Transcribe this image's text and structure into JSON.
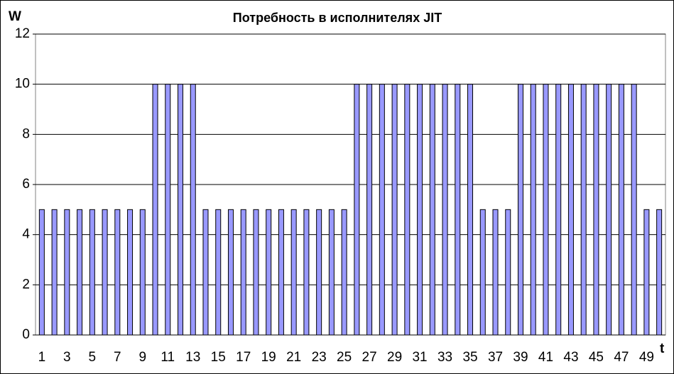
{
  "chart_data": {
    "type": "bar",
    "title": "Потребность в исполнителях JIT",
    "y_label": "W",
    "x_label": "t",
    "categories": [
      1,
      null,
      3,
      null,
      5,
      null,
      7,
      null,
      9,
      null,
      11,
      null,
      13,
      null,
      15,
      null,
      17,
      null,
      19,
      null,
      21,
      null,
      23,
      null,
      25,
      null,
      27,
      null,
      29,
      null,
      31,
      null,
      33,
      null,
      35,
      null,
      37,
      null,
      39,
      null,
      41,
      null,
      43,
      null,
      45,
      null,
      47,
      null,
      49,
      null
    ],
    "values": [
      5,
      5,
      5,
      5,
      5,
      5,
      5,
      5,
      5,
      10,
      10,
      10,
      10,
      5,
      5,
      5,
      5,
      5,
      5,
      5,
      5,
      5,
      5,
      5,
      5,
      10,
      10,
      10,
      10,
      10,
      10,
      10,
      10,
      10,
      10,
      5,
      5,
      5,
      10,
      10,
      10,
      10,
      10,
      10,
      10,
      10,
      10,
      10,
      5,
      5
    ],
    "color": "#9999ff",
    "ylim": [
      0,
      12
    ],
    "yticks": [
      0,
      2,
      4,
      6,
      8,
      10,
      12
    ],
    "grid": true
  }
}
